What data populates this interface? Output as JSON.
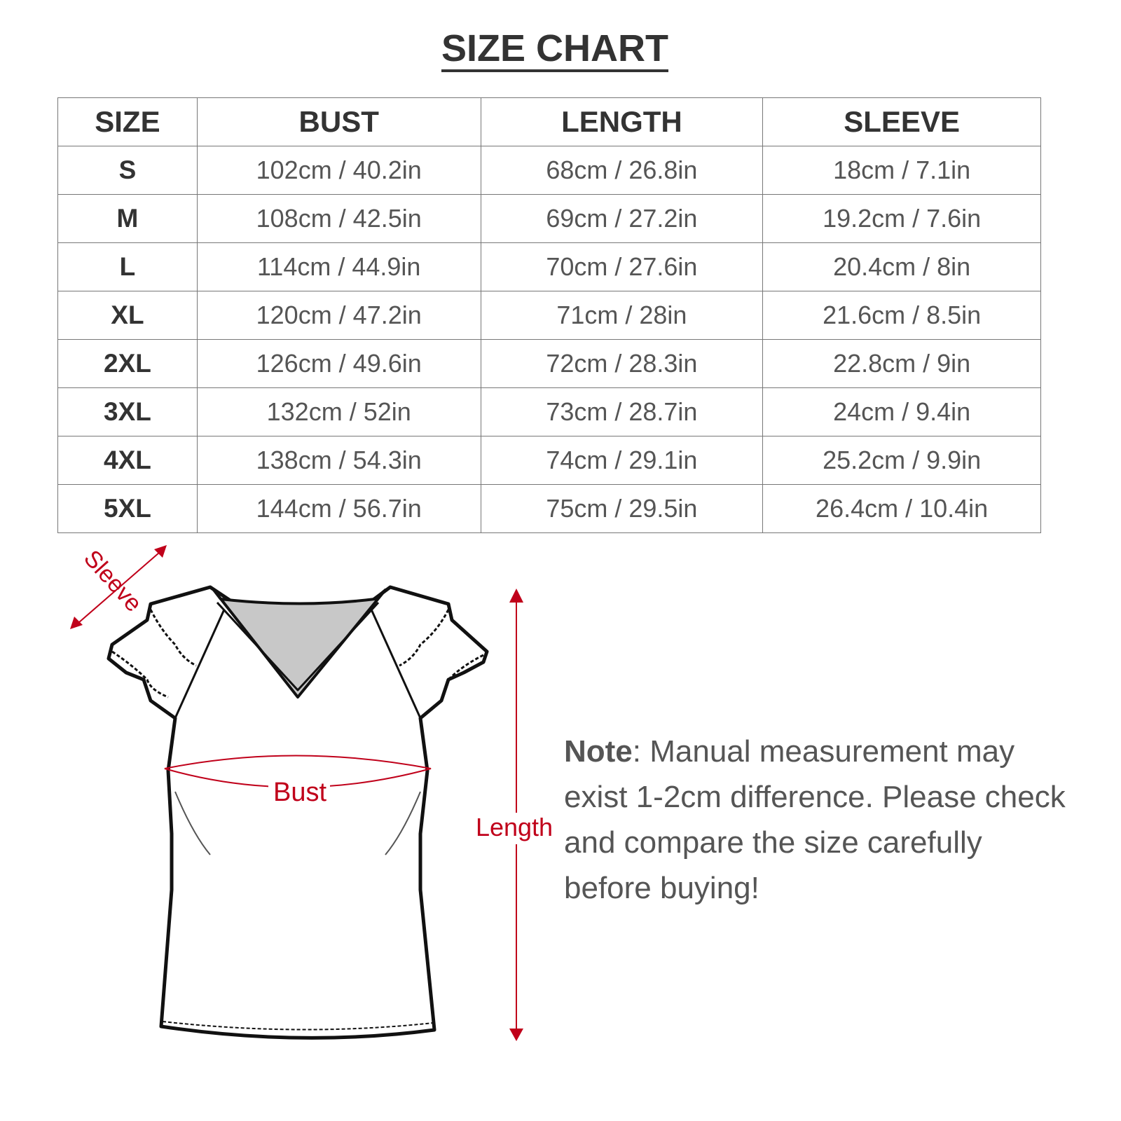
{
  "title": "SIZE CHART",
  "table": {
    "headers": [
      "SIZE",
      "BUST",
      "LENGTH",
      "SLEEVE"
    ],
    "rows": [
      [
        "S",
        "102cm / 40.2in",
        "68cm / 26.8in",
        "18cm / 7.1in"
      ],
      [
        "M",
        "108cm / 42.5in",
        "69cm / 27.2in",
        "19.2cm / 7.6in"
      ],
      [
        "L",
        "114cm / 44.9in",
        "70cm / 27.6in",
        "20.4cm / 8in"
      ],
      [
        "XL",
        "120cm / 47.2in",
        "71cm / 28in",
        "21.6cm / 8.5in"
      ],
      [
        "2XL",
        "126cm / 49.6in",
        "72cm / 28.3in",
        "22.8cm / 9in"
      ],
      [
        "3XL",
        "132cm / 52in",
        "73cm / 28.7in",
        "24cm / 9.4in"
      ],
      [
        "4XL",
        "138cm / 54.3in",
        "74cm / 29.1in",
        "25.2cm / 9.9in"
      ],
      [
        "5XL",
        "144cm / 56.7in",
        "75cm / 29.5in",
        "26.4cm / 10.4in"
      ]
    ]
  },
  "diagram": {
    "sleeve_label": "Sleeve",
    "bust_label": "Bust",
    "length_label": "Length",
    "accent_color": "#c0001a"
  },
  "note": {
    "label": "Note",
    "text": ": Manual measurement may exist 1-2cm difference. Please check and compare the size carefully before buying!"
  }
}
